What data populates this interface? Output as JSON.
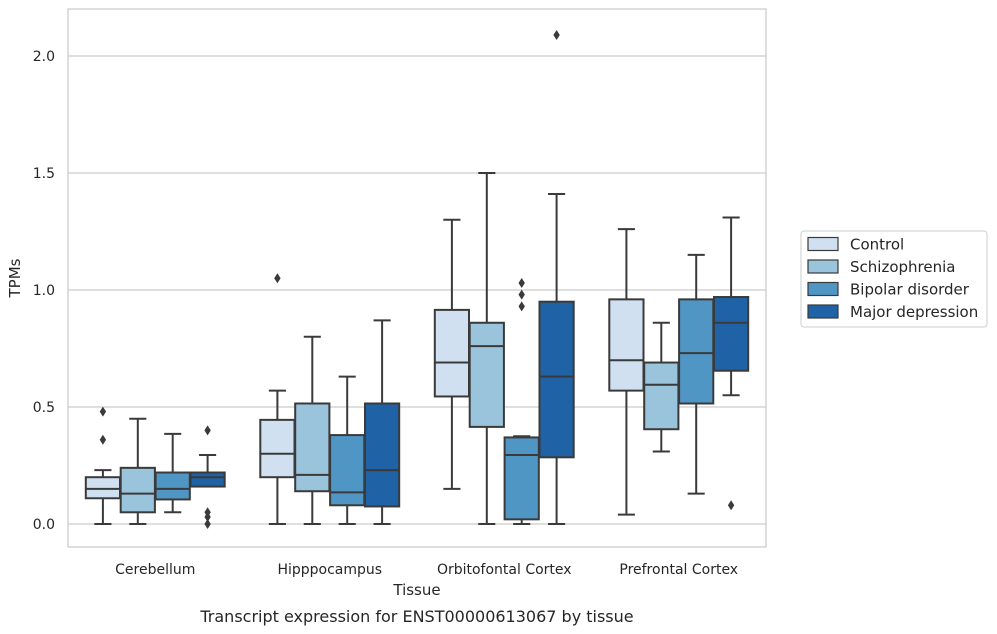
{
  "chart_data": {
    "type": "box",
    "xlabel": "Tissue",
    "ylabel": "TPMs",
    "caption": "Transcript expression for ENST00000613067 by tissue",
    "ylim": [
      -0.1,
      2.2
    ],
    "yticks": [
      "0.0",
      "0.5",
      "1.0",
      "1.5",
      "2.0"
    ],
    "grid": "horizontal",
    "legend_position": "right",
    "categories": [
      "Cerebellum",
      "Hipppocampus",
      "Orbitofontal Cortex",
      "Prefrontal Cortex"
    ],
    "series": [
      {
        "name": "Control",
        "color": "#d1e0f1",
        "boxes": [
          {
            "whislo": 0.0,
            "q1": 0.11,
            "med": 0.15,
            "q3": 0.2,
            "whishi": 0.23,
            "fliers": [
              0.36,
              0.48
            ]
          },
          {
            "whislo": 0.0,
            "q1": 0.2,
            "med": 0.3,
            "q3": 0.445,
            "whishi": 0.57,
            "fliers": [
              1.05
            ]
          },
          {
            "whislo": 0.15,
            "q1": 0.545,
            "med": 0.69,
            "q3": 0.915,
            "whishi": 1.3,
            "fliers": []
          },
          {
            "whislo": 0.04,
            "q1": 0.57,
            "med": 0.7,
            "q3": 0.96,
            "whishi": 1.26,
            "fliers": []
          }
        ]
      },
      {
        "name": "Schizophrenia",
        "color": "#9ac3dc",
        "boxes": [
          {
            "whislo": 0.0,
            "q1": 0.05,
            "med": 0.13,
            "q3": 0.24,
            "whishi": 0.45,
            "fliers": []
          },
          {
            "whislo": 0.0,
            "q1": 0.14,
            "med": 0.21,
            "q3": 0.515,
            "whishi": 0.8,
            "fliers": []
          },
          {
            "whislo": 0.0,
            "q1": 0.415,
            "med": 0.76,
            "q3": 0.86,
            "whishi": 1.5,
            "fliers": []
          },
          {
            "whislo": 0.31,
            "q1": 0.405,
            "med": 0.595,
            "q3": 0.69,
            "whishi": 0.86,
            "fliers": []
          }
        ]
      },
      {
        "name": "Bipolar disorder",
        "color": "#5096c5",
        "boxes": [
          {
            "whislo": 0.05,
            "q1": 0.105,
            "med": 0.15,
            "q3": 0.22,
            "whishi": 0.385,
            "fliers": []
          },
          {
            "whislo": 0.0,
            "q1": 0.08,
            "med": 0.135,
            "q3": 0.38,
            "whishi": 0.63,
            "fliers": []
          },
          {
            "whislo": 0.0,
            "q1": 0.02,
            "med": 0.295,
            "q3": 0.37,
            "whishi": 0.375,
            "fliers": [
              0.93,
              0.98,
              1.03
            ]
          },
          {
            "whislo": 0.13,
            "q1": 0.515,
            "med": 0.73,
            "q3": 0.96,
            "whishi": 1.15,
            "fliers": []
          }
        ]
      },
      {
        "name": "Major depression",
        "color": "#1f62a5",
        "boxes": [
          {
            "whislo": 0.16,
            "q1": 0.16,
            "med": 0.2,
            "q3": 0.22,
            "whishi": 0.295,
            "fliers": [
              0.0,
              0.03,
              0.05,
              0.4
            ]
          },
          {
            "whislo": 0.0,
            "q1": 0.075,
            "med": 0.23,
            "q3": 0.515,
            "whishi": 0.87,
            "fliers": []
          },
          {
            "whislo": 0.0,
            "q1": 0.285,
            "med": 0.63,
            "q3": 0.95,
            "whishi": 1.41,
            "fliers": [
              2.09
            ]
          },
          {
            "whislo": 0.55,
            "q1": 0.655,
            "med": 0.86,
            "q3": 0.97,
            "whishi": 1.31,
            "fliers": [
              0.08
            ]
          }
        ]
      }
    ]
  }
}
